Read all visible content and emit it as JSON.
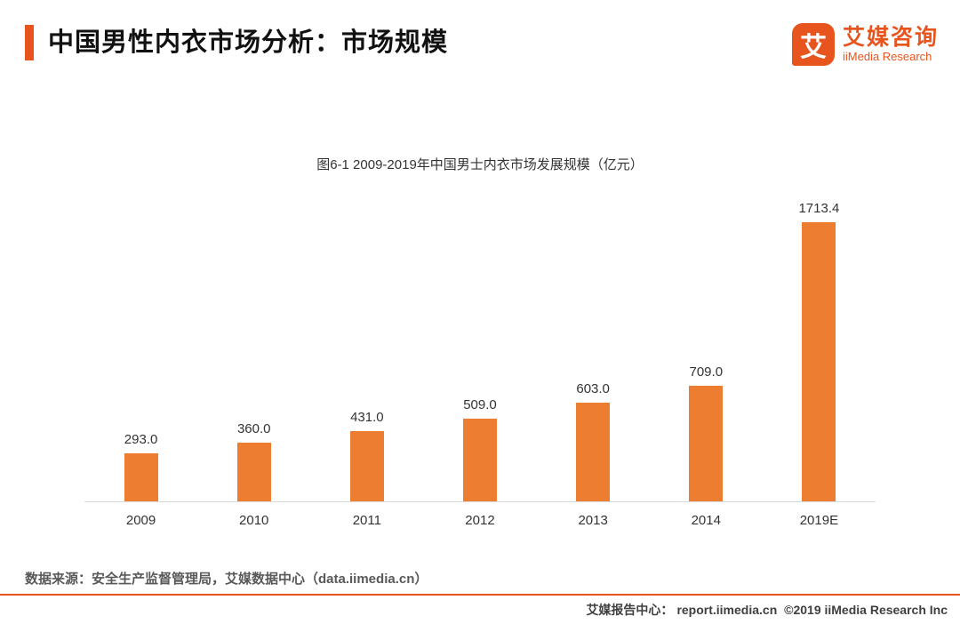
{
  "header": {
    "title": "中国男性内衣市场分析：市场规模",
    "logo": {
      "glyph": "艾",
      "name": "艾媒咨询",
      "subtitle": "iiMedia Research"
    }
  },
  "chart_data": {
    "type": "bar",
    "title": "图6-1 2009-2019年中国男士内衣市场发展规模（亿元）",
    "categories": [
      "2009",
      "2010",
      "2011",
      "2012",
      "2013",
      "2014",
      "2019E"
    ],
    "values": [
      293.0,
      360.0,
      431.0,
      509.0,
      603.0,
      709.0,
      1713.4
    ],
    "value_labels": [
      "293.0",
      "360.0",
      "431.0",
      "509.0",
      "603.0",
      "709.0",
      "1713.4"
    ],
    "xlabel": "",
    "ylabel": "",
    "ylim": [
      0,
      1800
    ],
    "grid": false,
    "legend": "none",
    "bar_color": "#ED7D31"
  },
  "source": "数据来源：安全生产监督管理局，艾媒数据中心（data.iimedia.cn）",
  "footer": {
    "prefix": "艾媒报告中心：",
    "url": "report.iimedia.cn",
    "copyright": "©2019  iiMedia Research Inc"
  },
  "colors": {
    "accent": "#E8541E",
    "bar": "#ED7D31"
  }
}
